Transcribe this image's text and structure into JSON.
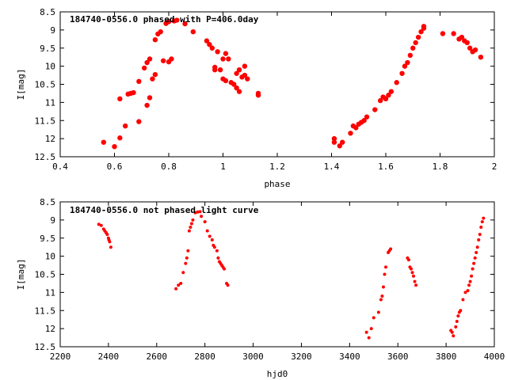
{
  "chart_data": [
    {
      "type": "scatter",
      "title": "184740-0556.0 phased with P=406.0day",
      "xlabel": "phase",
      "ylabel": "I[mag]",
      "xlim": [
        0.4,
        2.0
      ],
      "ylim": [
        12.5,
        8.5
      ],
      "y_inverted": true,
      "xticks": [
        "0.4",
        "0.6",
        "0.8",
        "1",
        "1.2",
        "1.4",
        "1.6",
        "1.8",
        "2"
      ],
      "yticks": [
        "8.5",
        "9",
        "9.5",
        "10",
        "10.5",
        "11",
        "11.5",
        "12",
        "12.5"
      ],
      "marker_color": "#ff0000",
      "marker": "filled-circle-large",
      "series": [
        {
          "points": [
            [
              0.56,
              12.1
            ],
            [
              0.6,
              12.22
            ],
            [
              0.62,
              11.98
            ],
            [
              0.62,
              10.9
            ],
            [
              0.64,
              11.65
            ],
            [
              0.65,
              10.77
            ],
            [
              0.66,
              10.75
            ],
            [
              0.67,
              10.73
            ],
            [
              0.69,
              11.53
            ],
            [
              0.69,
              10.42
            ],
            [
              0.71,
              10.05
            ],
            [
              0.72,
              11.08
            ],
            [
              0.72,
              9.9
            ],
            [
              0.73,
              9.8
            ],
            [
              0.73,
              10.87
            ],
            [
              0.74,
              10.35
            ],
            [
              0.75,
              10.23
            ],
            [
              0.75,
              9.27
            ],
            [
              0.76,
              9.11
            ],
            [
              0.77,
              9.05
            ],
            [
              0.78,
              9.85
            ],
            [
              0.79,
              8.82
            ],
            [
              0.8,
              9.88
            ],
            [
              0.8,
              8.77
            ],
            [
              0.81,
              9.8
            ],
            [
              0.82,
              8.75
            ],
            [
              0.83,
              8.73
            ],
            [
              0.86,
              8.83
            ],
            [
              0.89,
              9.05
            ],
            [
              0.94,
              9.3
            ],
            [
              0.95,
              9.4
            ],
            [
              0.96,
              9.5
            ],
            [
              0.97,
              10.03
            ],
            [
              0.97,
              10.1
            ],
            [
              0.98,
              9.6
            ],
            [
              0.99,
              10.1
            ],
            [
              1.0,
              9.8
            ],
            [
              1.0,
              10.35
            ],
            [
              1.01,
              9.65
            ],
            [
              1.01,
              10.4
            ],
            [
              1.02,
              9.8
            ],
            [
              1.03,
              10.45
            ],
            [
              1.04,
              10.5
            ],
            [
              1.05,
              10.2
            ],
            [
              1.05,
              10.6
            ],
            [
              1.06,
              10.1
            ],
            [
              1.06,
              10.7
            ],
            [
              1.07,
              10.3
            ],
            [
              1.08,
              10.0
            ],
            [
              1.08,
              10.25
            ],
            [
              1.09,
              10.35
            ],
            [
              1.13,
              10.75
            ],
            [
              1.13,
              10.8
            ],
            [
              1.41,
              12.0
            ],
            [
              1.41,
              12.1
            ],
            [
              1.43,
              12.2
            ],
            [
              1.44,
              12.1
            ],
            [
              1.47,
              11.85
            ],
            [
              1.48,
              11.65
            ],
            [
              1.49,
              11.7
            ],
            [
              1.5,
              11.6
            ],
            [
              1.51,
              11.55
            ],
            [
              1.52,
              11.5
            ],
            [
              1.53,
              11.4
            ],
            [
              1.56,
              11.2
            ],
            [
              1.58,
              10.95
            ],
            [
              1.59,
              10.85
            ],
            [
              1.6,
              10.9
            ],
            [
              1.61,
              10.8
            ],
            [
              1.62,
              10.7
            ],
            [
              1.64,
              10.45
            ],
            [
              1.66,
              10.2
            ],
            [
              1.67,
              10.0
            ],
            [
              1.68,
              9.9
            ],
            [
              1.69,
              9.7
            ],
            [
              1.7,
              9.5
            ],
            [
              1.71,
              9.35
            ],
            [
              1.72,
              9.2
            ],
            [
              1.73,
              9.05
            ],
            [
              1.74,
              8.95
            ],
            [
              1.74,
              8.9
            ],
            [
              1.81,
              9.1
            ],
            [
              1.85,
              9.1
            ],
            [
              1.87,
              9.25
            ],
            [
              1.88,
              9.2
            ],
            [
              1.89,
              9.3
            ],
            [
              1.9,
              9.35
            ],
            [
              1.91,
              9.5
            ],
            [
              1.92,
              9.6
            ],
            [
              1.93,
              9.55
            ],
            [
              1.95,
              9.75
            ]
          ]
        }
      ]
    },
    {
      "type": "scatter",
      "title": "184740-0556.0 not phased light curve",
      "xlabel": "hjd0",
      "ylabel": "I[mag]",
      "xlim": [
        2200,
        4000
      ],
      "ylim": [
        12.5,
        8.5
      ],
      "y_inverted": true,
      "xticks": [
        "2200",
        "2400",
        "2600",
        "2800",
        "3000",
        "3200",
        "3400",
        "3600",
        "3800",
        "4000"
      ],
      "yticks": [
        "8.5",
        "9",
        "9.5",
        "10",
        "10.5",
        "11",
        "11.5",
        "12",
        "12.5"
      ],
      "marker_color": "#ff0000",
      "marker": "filled-circle-small",
      "series": [
        {
          "points": [
            [
              2360,
              9.12
            ],
            [
              2370,
              9.15
            ],
            [
              2380,
              9.25
            ],
            [
              2385,
              9.3
            ],
            [
              2390,
              9.35
            ],
            [
              2395,
              9.4
            ],
            [
              2400,
              9.5
            ],
            [
              2402,
              9.55
            ],
            [
              2405,
              9.6
            ],
            [
              2410,
              9.75
            ],
            [
              2680,
              10.9
            ],
            [
              2690,
              10.8
            ],
            [
              2700,
              10.75
            ],
            [
              2710,
              10.45
            ],
            [
              2720,
              10.2
            ],
            [
              2725,
              10.05
            ],
            [
              2730,
              9.85
            ],
            [
              2735,
              9.3
            ],
            [
              2740,
              9.2
            ],
            [
              2745,
              9.1
            ],
            [
              2750,
              9.0
            ],
            [
              2760,
              8.8
            ],
            [
              2770,
              8.78
            ],
            [
              2780,
              8.77
            ],
            [
              2785,
              8.9
            ],
            [
              2800,
              9.05
            ],
            [
              2810,
              9.3
            ],
            [
              2820,
              9.45
            ],
            [
              2830,
              9.55
            ],
            [
              2835,
              9.7
            ],
            [
              2840,
              9.75
            ],
            [
              2850,
              9.85
            ],
            [
              2855,
              10.05
            ],
            [
              2860,
              10.15
            ],
            [
              2865,
              10.2
            ],
            [
              2870,
              10.25
            ],
            [
              2875,
              10.3
            ],
            [
              2880,
              10.35
            ],
            [
              2890,
              10.75
            ],
            [
              2895,
              10.8
            ],
            [
              3470,
              12.1
            ],
            [
              3480,
              12.25
            ],
            [
              3490,
              12.0
            ],
            [
              3500,
              11.7
            ],
            [
              3520,
              11.55
            ],
            [
              3530,
              11.2
            ],
            [
              3535,
              11.1
            ],
            [
              3540,
              10.85
            ],
            [
              3545,
              10.5
            ],
            [
              3550,
              10.3
            ],
            [
              3560,
              9.9
            ],
            [
              3565,
              9.85
            ],
            [
              3570,
              9.8
            ],
            [
              3640,
              10.05
            ],
            [
              3645,
              10.1
            ],
            [
              3650,
              10.3
            ],
            [
              3655,
              10.35
            ],
            [
              3660,
              10.45
            ],
            [
              3665,
              10.55
            ],
            [
              3670,
              10.7
            ],
            [
              3675,
              10.8
            ],
            [
              3820,
              12.05
            ],
            [
              3825,
              12.1
            ],
            [
              3830,
              12.2
            ],
            [
              3840,
              11.95
            ],
            [
              3845,
              11.8
            ],
            [
              3850,
              11.65
            ],
            [
              3855,
              11.55
            ],
            [
              3860,
              11.5
            ],
            [
              3870,
              11.2
            ],
            [
              3880,
              11.0
            ],
            [
              3890,
              10.95
            ],
            [
              3895,
              10.8
            ],
            [
              3900,
              10.7
            ],
            [
              3905,
              10.55
            ],
            [
              3910,
              10.35
            ],
            [
              3915,
              10.2
            ],
            [
              3920,
              10.05
            ],
            [
              3925,
              9.9
            ],
            [
              3930,
              9.75
            ],
            [
              3935,
              9.55
            ],
            [
              3940,
              9.4
            ],
            [
              3945,
              9.2
            ],
            [
              3950,
              9.05
            ],
            [
              3955,
              8.95
            ]
          ]
        }
      ]
    }
  ]
}
